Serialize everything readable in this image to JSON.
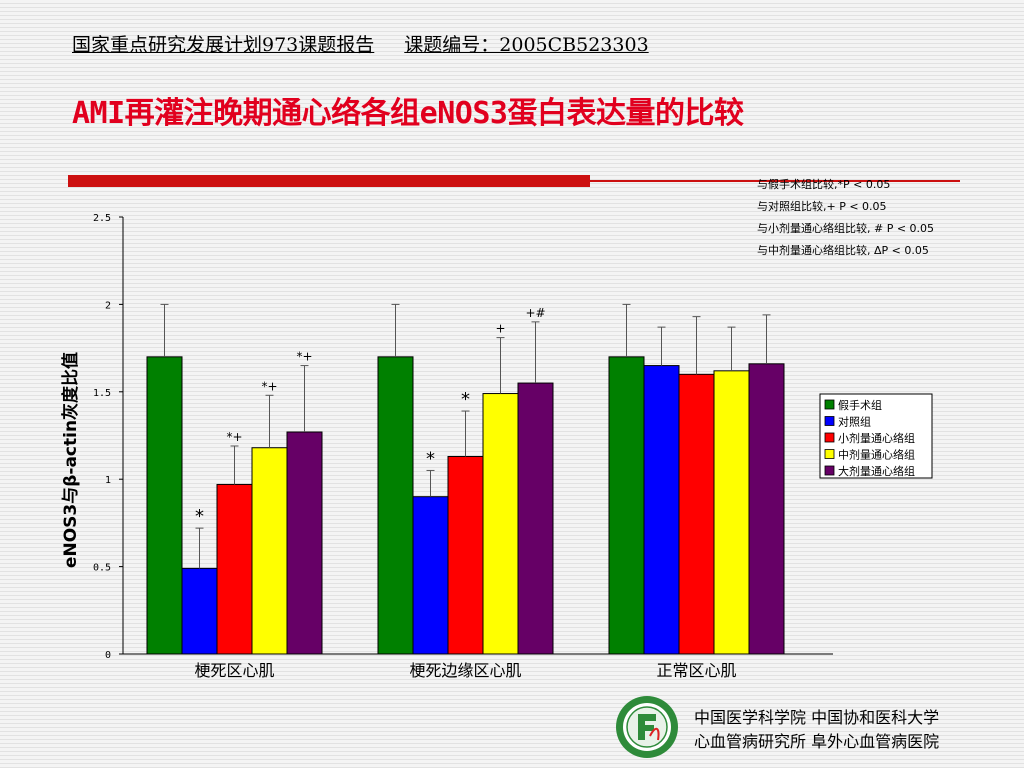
{
  "header": {
    "report": "国家重点研究发展计划973课题报告",
    "project_no": "课题编号：2005CB523303"
  },
  "title": "AMI再灌注晚期通心络各组eNOS3蛋白表达量的比较",
  "notes": [
    "与假手术组比较,*P < 0.05",
    "与对照组比较,+ P < 0.05",
    "与小剂量通心络组比较, # P < 0.05",
    "与中剂量通心络组比较, ΔP < 0.05"
  ],
  "footer": {
    "line1": "中国医学科学院  中国协和医科大学",
    "line2": "心血管病研究所  阜外心血管病医院"
  },
  "chart_data": {
    "type": "bar",
    "categories": [
      "梗死区心肌",
      "梗死边缘区心肌",
      "正常区心肌"
    ],
    "ylabel": "eNOS3与β-actin灰度比值",
    "ylim": [
      0,
      2.5
    ],
    "yticks": [
      "0",
      "0.5",
      "1",
      "1.5",
      "2",
      "2.5"
    ],
    "grid": false,
    "legend_position": "right",
    "series": [
      {
        "name": "假手术组",
        "color": "#008000",
        "values": [
          1.7,
          1.7,
          1.7
        ],
        "errors": [
          0.3,
          0.3,
          0.3
        ],
        "annotations": [
          "",
          "",
          ""
        ]
      },
      {
        "name": "对照组",
        "color": "#0000ff",
        "values": [
          0.49,
          0.9,
          1.65
        ],
        "errors": [
          0.23,
          0.15,
          0.22
        ],
        "annotations": [
          "*",
          "*",
          ""
        ]
      },
      {
        "name": "小剂量通心络组",
        "color": "#ff0000",
        "values": [
          0.97,
          1.13,
          1.6
        ],
        "errors": [
          0.22,
          0.26,
          0.33
        ],
        "annotations": [
          "*+",
          "*",
          ""
        ]
      },
      {
        "name": "中剂量通心络组",
        "color": "#ffff00",
        "values": [
          1.18,
          1.49,
          1.62
        ],
        "errors": [
          0.3,
          0.32,
          0.25
        ],
        "annotations": [
          "*+",
          "+",
          ""
        ]
      },
      {
        "name": "大剂量通心络组",
        "color": "#660066",
        "values": [
          1.27,
          1.55,
          1.66
        ],
        "errors": [
          0.38,
          0.35,
          0.28
        ],
        "annotations": [
          "*+",
          "+#",
          ""
        ]
      }
    ]
  }
}
